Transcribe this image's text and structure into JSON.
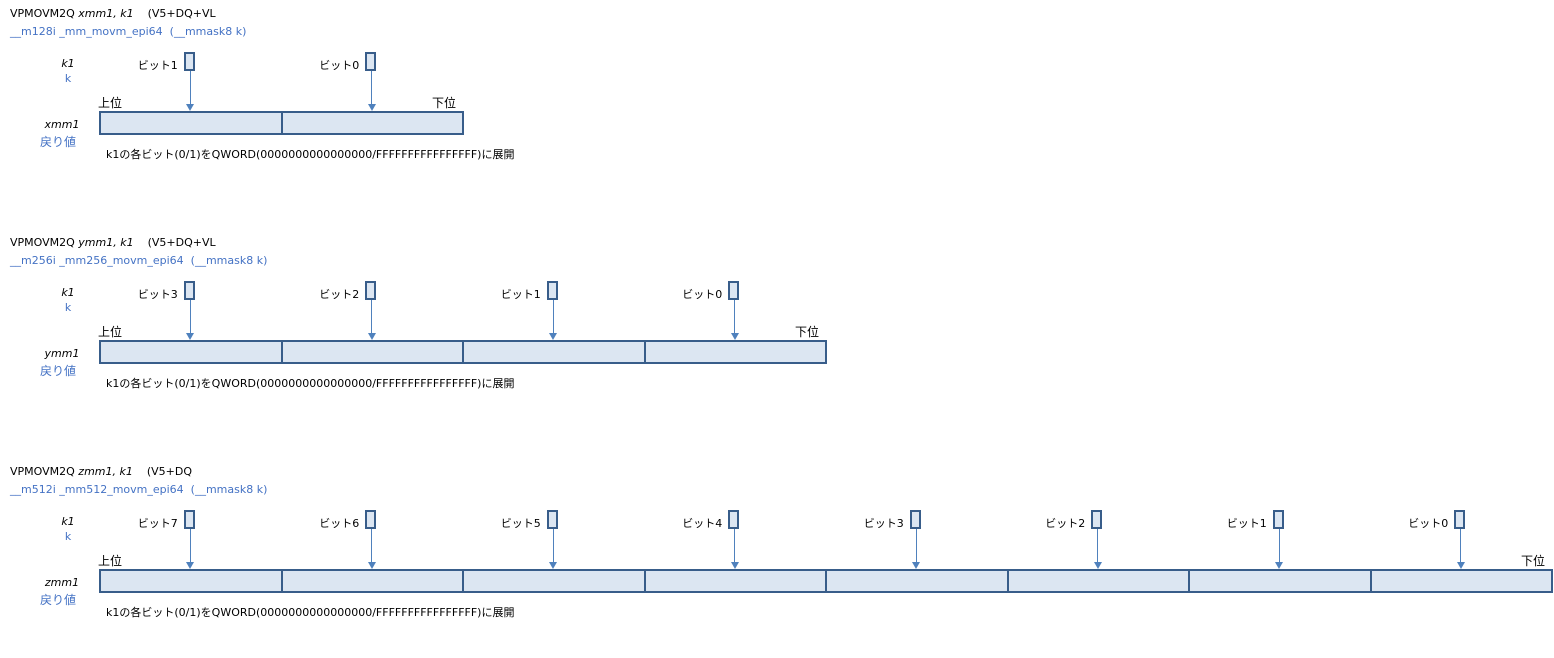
{
  "sections": [
    {
      "mnemonic": "VPMOVM2Q ",
      "operands": "xmm1, k1",
      "ext": "    (V5+DQ+VL",
      "intrinsic": "__m128i _mm_movm_epi64  (__mmask8 k)",
      "mask_reg": "k1",
      "mask_param": "k",
      "dest_reg": "xmm1",
      "return_label": "戻り値",
      "high_label": "上位",
      "low_label": "下位",
      "bits": [
        "ビット1",
        "ビット0"
      ],
      "description": "k1の各ビット(0/1)をQWORD(0000000000000000/FFFFFFFFFFFFFFFF)に展開"
    },
    {
      "mnemonic": "VPMOVM2Q ",
      "operands": "ymm1, k1",
      "ext": "    (V5+DQ+VL",
      "intrinsic": "__m256i _mm256_movm_epi64  (__mmask8 k)",
      "mask_reg": "k1",
      "mask_param": "k",
      "dest_reg": "ymm1",
      "return_label": "戻り値",
      "high_label": "上位",
      "low_label": "下位",
      "bits": [
        "ビット3",
        "ビット2",
        "ビット1",
        "ビット0"
      ],
      "description": "k1の各ビット(0/1)をQWORD(0000000000000000/FFFFFFFFFFFFFFFF)に展開"
    },
    {
      "mnemonic": "VPMOVM2Q ",
      "operands": "zmm1, k1",
      "ext": "    (V5+DQ",
      "intrinsic": "__m512i _mm512_movm_epi64  (__mmask8 k)",
      "mask_reg": "k1",
      "mask_param": "k",
      "dest_reg": "zmm1",
      "return_label": "戻り値",
      "high_label": "上位",
      "low_label": "下位",
      "bits": [
        "ビット7",
        "ビット6",
        "ビット5",
        "ビット4",
        "ビット3",
        "ビット2",
        "ビット1",
        "ビット0"
      ],
      "description": "k1の各ビット(0/1)をQWORD(0000000000000000/FFFFFFFFFFFFFFFF)に展開"
    }
  ]
}
